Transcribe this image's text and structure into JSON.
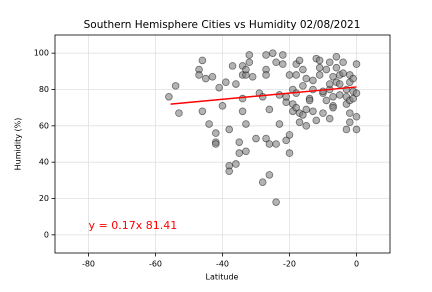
{
  "chart_data": {
    "type": "scatter",
    "title": "Southern Hemisphere Cities vs Humidity 02/08/2021",
    "x_label": "Latitude",
    "y_label": "Humidity (%)",
    "xlim": [
      -90,
      10
    ],
    "ylim": [
      -10,
      110
    ],
    "xticks": [
      -80,
      -60,
      -40,
      -20,
      0
    ],
    "yticks": [
      0,
      20,
      40,
      60,
      80,
      100
    ],
    "grid": true,
    "series": [
      {
        "name": "Cities",
        "color": "#808080",
        "x": [
          -56,
          -54,
          -53,
          -47,
          -47,
          -46,
          -46,
          -45,
          -44,
          -43,
          -42,
          -42,
          -42,
          -41,
          -39,
          -38,
          -38,
          -38,
          -37,
          -36,
          -36,
          -35,
          -35,
          -34,
          -34,
          -34,
          -33,
          -33,
          -34,
          -33,
          -33,
          -32,
          -32,
          -31,
          -29,
          -28,
          -28,
          -27,
          -27,
          -27,
          -26,
          -26,
          -25,
          -24,
          -24,
          -24,
          -23,
          -23,
          -22,
          -22,
          -21,
          -21,
          -21,
          -20,
          -20,
          -20,
          -19,
          -19,
          -19,
          -18,
          -18,
          -18,
          -18,
          -17,
          -17,
          -17,
          -16,
          -16,
          -16,
          -15,
          -15,
          -15,
          -14,
          -14,
          -13,
          -13,
          -13,
          -12,
          -12,
          -11,
          -11,
          -11,
          -10,
          -10,
          -10,
          -9,
          -9,
          -8,
          -8,
          -8,
          -8,
          -7,
          -7,
          -7,
          -7,
          -6,
          -6,
          -6,
          -5,
          -5,
          -5,
          -4,
          -4,
          -3,
          -3,
          -3,
          -3,
          -2,
          -2,
          -2,
          -2,
          -2,
          -1,
          -1,
          -1,
          0,
          0,
          0,
          0,
          -30,
          -26,
          -27,
          -40
        ],
        "values": [
          76,
          82,
          67,
          91,
          88,
          96,
          68,
          86,
          61,
          87,
          51,
          50,
          56,
          81,
          84,
          58,
          38,
          35,
          93,
          39,
          83,
          51,
          45,
          75,
          93,
          88,
          88,
          91,
          68,
          46,
          61,
          95,
          99,
          87,
          78,
          76,
          29,
          99,
          91,
          53,
          33,
          69,
          100,
          95,
          50,
          18,
          61,
          77,
          99,
          94,
          73,
          76,
          52,
          88,
          45,
          55,
          80,
          72,
          68,
          70,
          78,
          88,
          94,
          96,
          67,
          62,
          66,
          82,
          91,
          86,
          60,
          69,
          75,
          74,
          85,
          68,
          80,
          63,
          97,
          92,
          96,
          88,
          78,
          67,
          79,
          74,
          91,
          95,
          80,
          83,
          64,
          71,
          76,
          70,
          87,
          84,
          98,
          92,
          88,
          77,
          83,
          95,
          89,
          80,
          72,
          76,
          58,
          88,
          67,
          74,
          62,
          84,
          86,
          79,
          75,
          94,
          65,
          58,
          78,
          53,
          50,
          88,
          71
        ]
      }
    ],
    "regression": {
      "color": "#ff0000",
      "x": [
        -55.5,
        0
      ],
      "values": [
        71.98,
        81.41
      ]
    },
    "annotation": {
      "text": "y = 0.17x 81.41",
      "color": "#ff0000",
      "x": -80,
      "y": 5
    }
  }
}
